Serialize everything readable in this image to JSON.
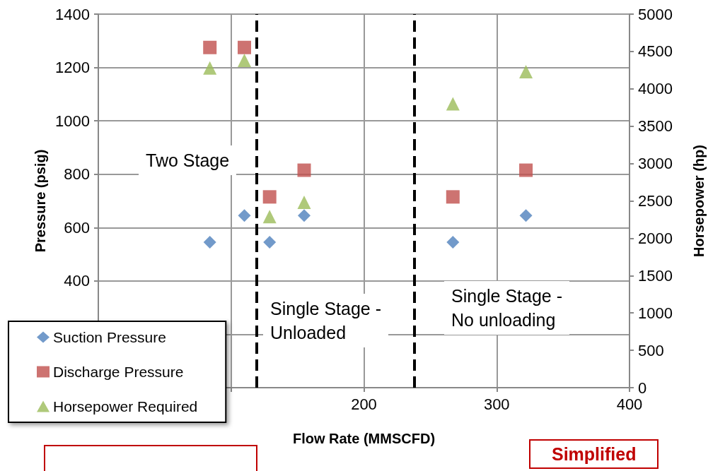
{
  "chart_data": {
    "type": "scatter",
    "xlabel": "Flow Rate (MMSCFD)",
    "ylabel": "Pressure (psig)",
    "y2label": "Horsepower (hp)",
    "series": [
      {
        "name": "Suction Pressure",
        "color": "#4f81bd",
        "marker": "diamond",
        "x": [
          84,
          110,
          129,
          155,
          267,
          322
        ],
        "values": [
          545,
          645,
          545,
          645,
          545,
          645
        ]
      },
      {
        "name": "Discharge Pressure",
        "color": "#c0504d",
        "marker": "square",
        "x": [
          84,
          110,
          129,
          155,
          267,
          322
        ],
        "values": [
          1275,
          1275,
          715,
          815,
          715,
          815
        ]
      },
      {
        "name": "Horsepower Required",
        "color": "#9bbb59",
        "marker": "triangle",
        "axis": "y2",
        "x": [
          84,
          110,
          129,
          155,
          267,
          322
        ],
        "values": [
          4280,
          4380,
          2290,
          2480,
          3800,
          4230
        ]
      }
    ],
    "xlim": [
      0,
      400
    ],
    "xticks": [
      {
        "value": 0,
        "label": null
      },
      {
        "value": 100,
        "label": null
      },
      200,
      300,
      400
    ],
    "ylim": [
      0,
      1400
    ],
    "yticks": [
      {
        "value": 0,
        "label": null
      },
      {
        "value": 200,
        "label": null
      },
      400,
      600,
      800,
      1000,
      1200,
      1400
    ],
    "y2lim": [
      0,
      5000
    ],
    "y2ticks": [
      0,
      500,
      1000,
      1500,
      2000,
      2500,
      3000,
      3500,
      4000,
      4500,
      5000
    ],
    "ref_lines": [
      {
        "axis": "x",
        "value": 119,
        "label": null,
        "color": "#000000",
        "line_style": "dashed"
      },
      {
        "axis": "x",
        "value": 238,
        "label": null,
        "color": "#000000",
        "line_style": "dashed"
      }
    ],
    "annotations": [
      "Two Stage",
      "Single Stage -\nUnloaded",
      "Single Stage -\nNo unloading",
      "Simplified"
    ],
    "grid": true,
    "legend": "bottom left"
  }
}
